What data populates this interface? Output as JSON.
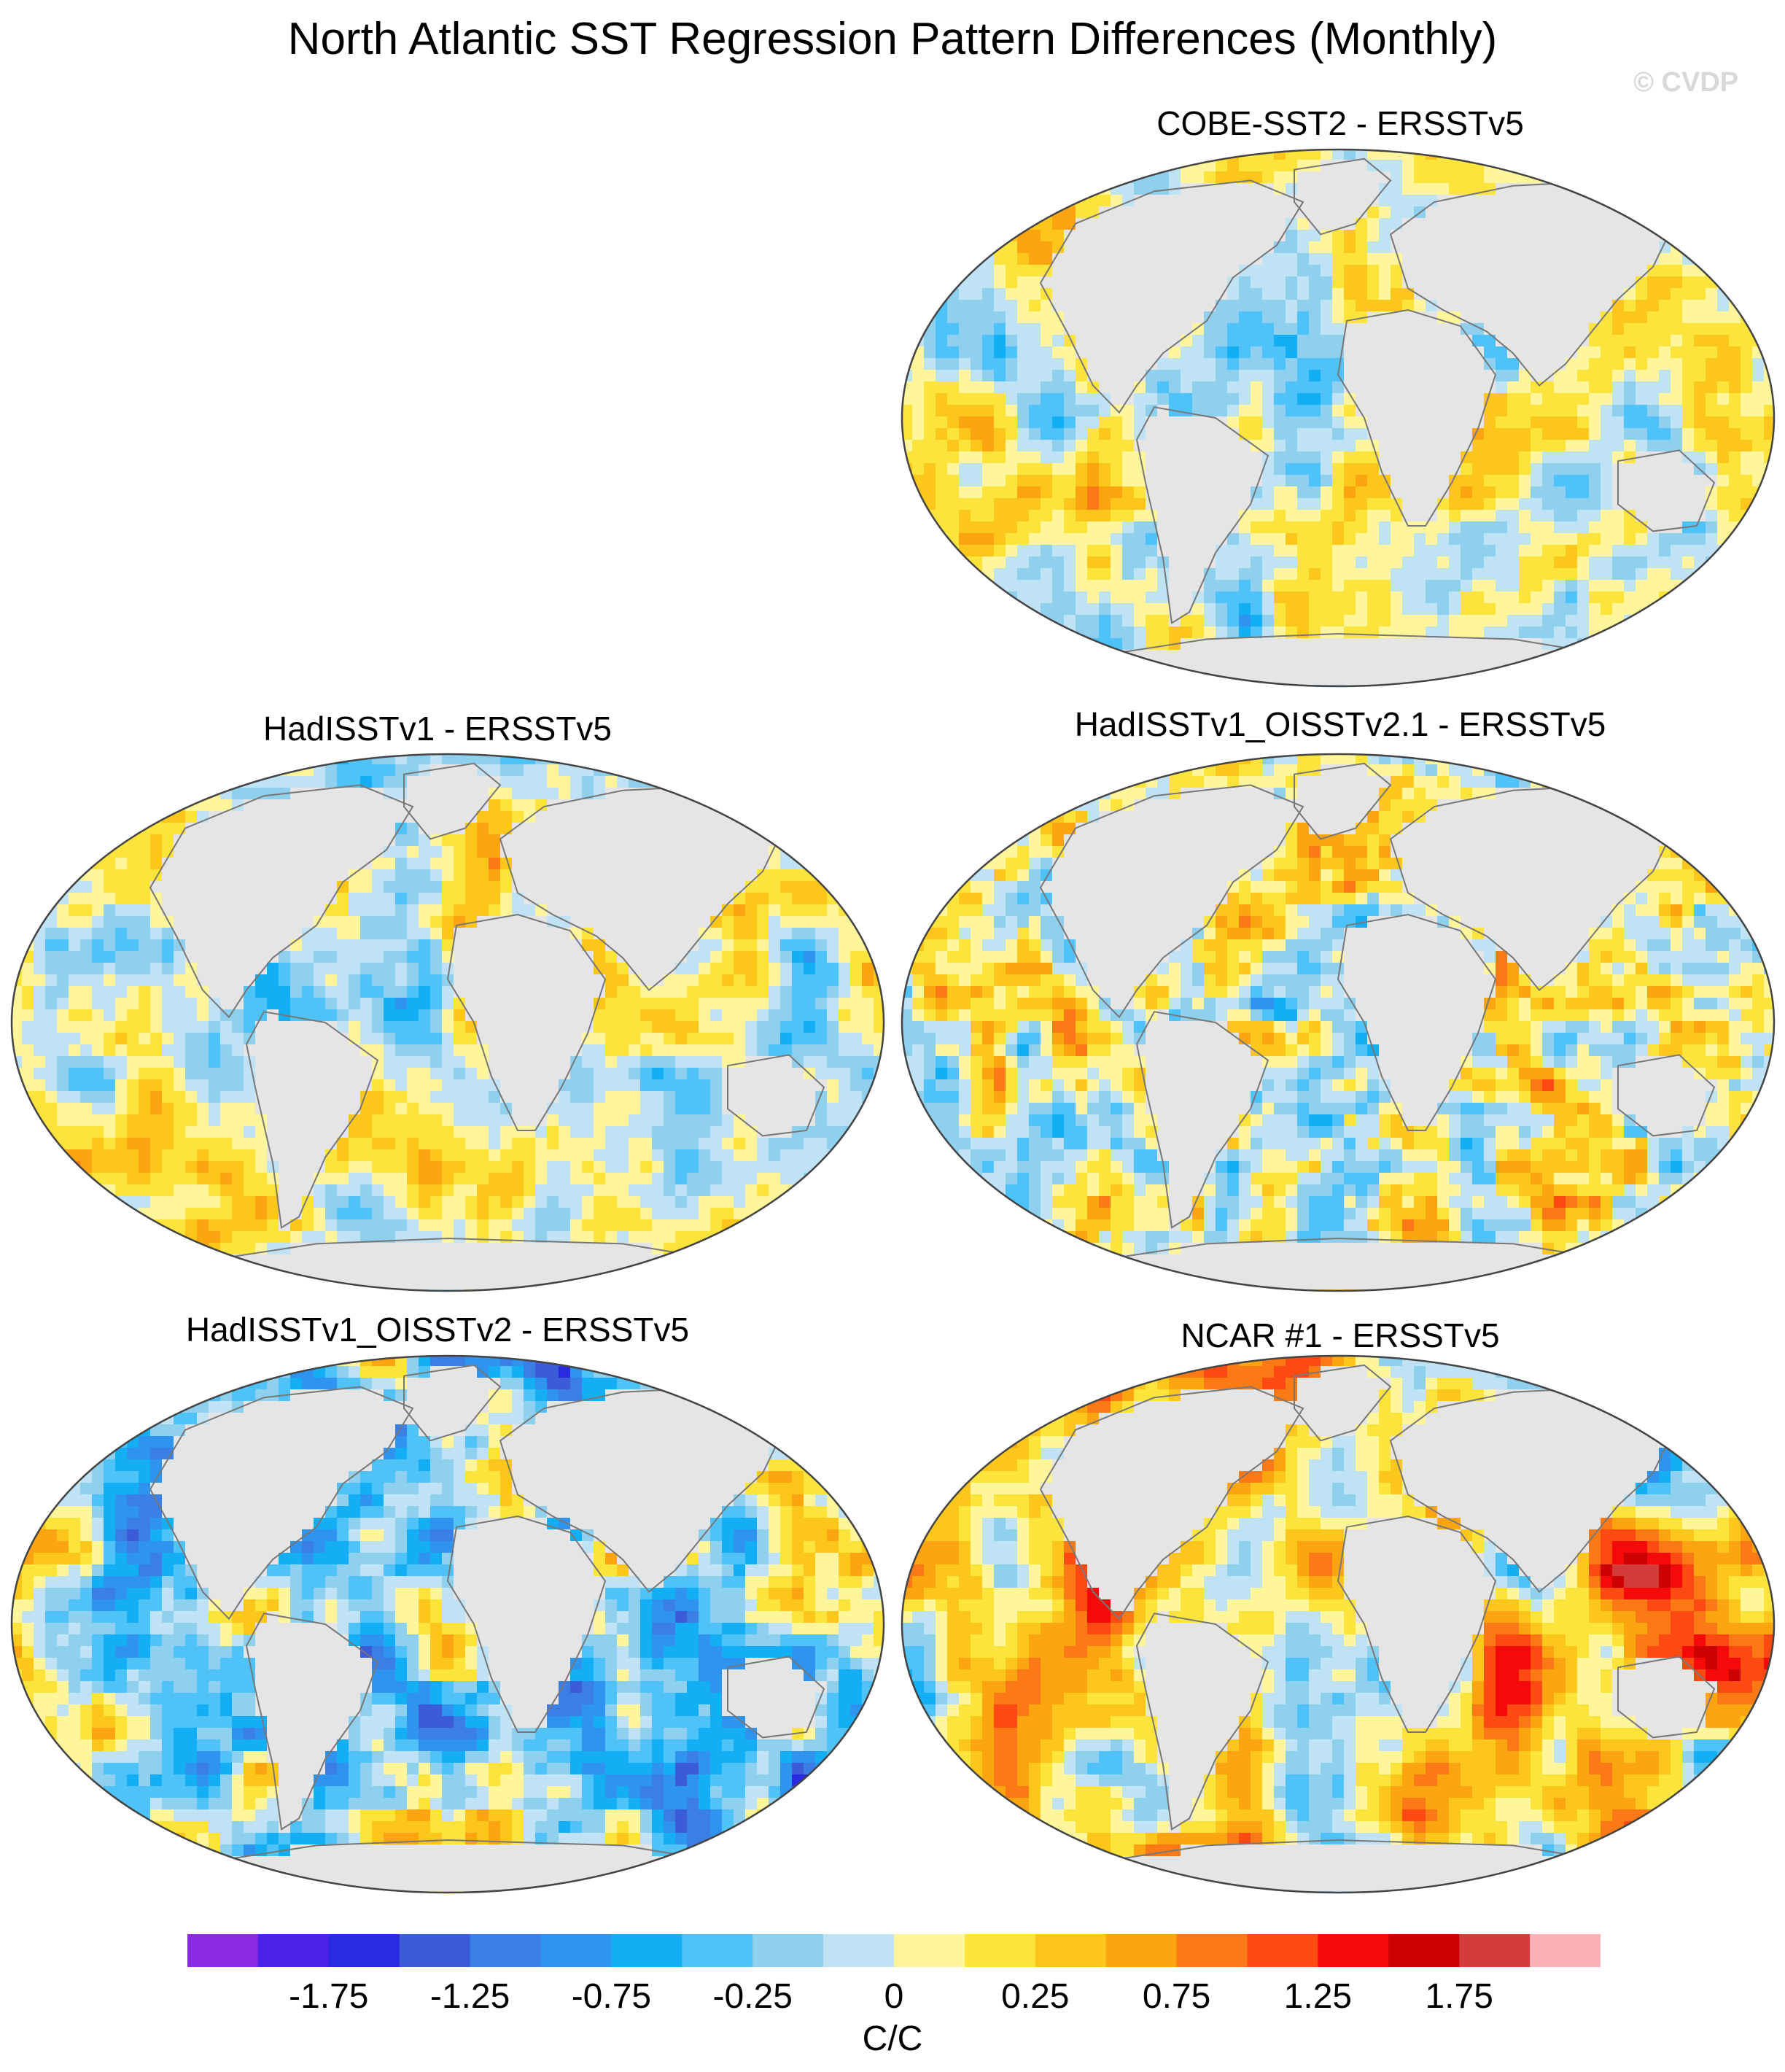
{
  "title": "North Atlantic SST Regression Pattern Differences (Monthly)",
  "watermark": "© CVDP",
  "panels": [
    {
      "title": "COBE-SST2 - ERSSTv5",
      "style": "mixed"
    },
    {
      "title": "HadISSTv1 - ERSSTv5",
      "style": "mixed"
    },
    {
      "title": "HadISSTv1_OISSTv2.1 - ERSSTv5",
      "style": "warm"
    },
    {
      "title": "HadISSTv1_OISSTv2 - ERSSTv5",
      "style": "cool"
    },
    {
      "title": "NCAR #1 - ERSSTv5",
      "style": "hot"
    }
  ],
  "colorbar": {
    "colors": [
      "#8a2be2",
      "#4b22e8",
      "#2a2ae0",
      "#3c5bd8",
      "#3a7ee6",
      "#2f93f0",
      "#14aef5",
      "#4fc3f7",
      "#8fd0ee",
      "#bfe3f5",
      "#fff59a",
      "#fde43c",
      "#fcc61a",
      "#fca510",
      "#fb7a16",
      "#fc4a12",
      "#f50a0a",
      "#cc0000",
      "#d43c3c",
      "#fbb2b6"
    ],
    "tick_labels": [
      "-1.75",
      "-1.25",
      "-0.75",
      "-0.25",
      "0",
      "0.25",
      "0.75",
      "1.25",
      "1.75"
    ],
    "units": "C/C"
  }
}
